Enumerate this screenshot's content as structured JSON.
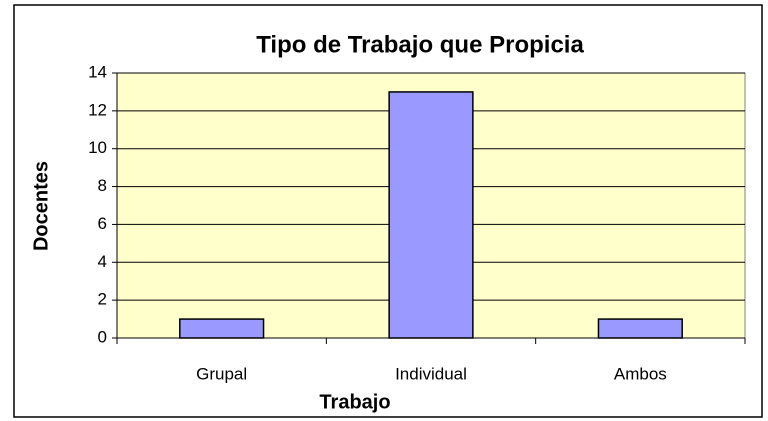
{
  "chart_data": {
    "type": "bar",
    "title": "Tipo de Trabajo que Propicia",
    "xlabel": "Trabajo",
    "ylabel": "Docentes",
    "categories": [
      "Grupal",
      "Individual",
      "Ambos"
    ],
    "values": [
      1,
      13,
      1
    ],
    "color": "#9999ff",
    "ylim": [
      0,
      14
    ],
    "yticks": [
      0,
      2,
      4,
      6,
      8,
      10,
      12,
      14
    ],
    "grid": true,
    "plot_background": "#ffffcc"
  }
}
